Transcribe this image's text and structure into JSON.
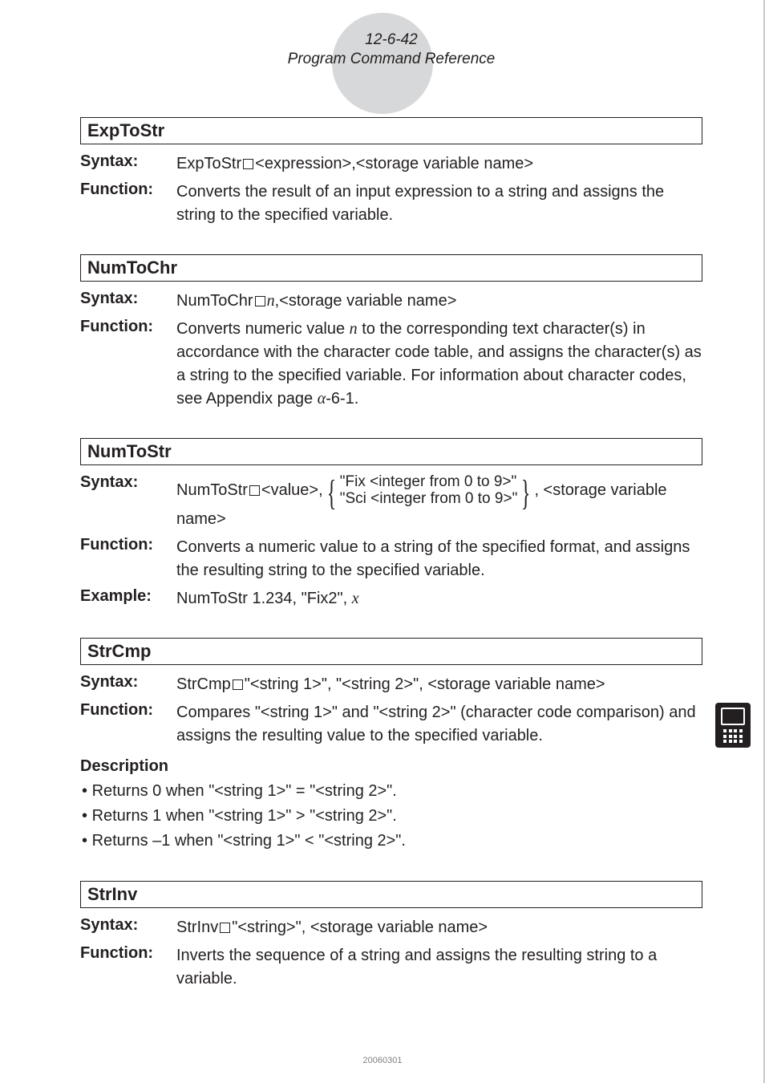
{
  "header": {
    "line1": "12-6-42",
    "line2": "Program Command Reference"
  },
  "cmds": [
    {
      "title": "ExpToStr",
      "syntax_html": "ExpToStr<span class=\"sq\"></span>&lt;expression&gt;,&lt;storage variable name&gt;",
      "function": "Converts the result of an input expression to a string and assigns the string to the specified variable."
    },
    {
      "title": "NumToChr",
      "syntax_html": "NumToChr<span class=\"sq\"></span><span class=\"ital\">n</span>,&lt;storage variable name&gt;",
      "function_html": "Converts numeric value <span class=\"ital\">n</span> to the corresponding text character(s) in accordance with the character code table, and assigns the character(s) as a string to the specified variable. For information about character codes, see Appendix page <span class=\"alpha\">α</span>-6-1."
    },
    {
      "title": "NumToStr",
      "syntax_html": "NumToStr<span class=\"sq\"></span>&lt;value&gt;,<span class=\"brace\">{</span><span class=\"stack\"><div>\"Fix &lt;integer from 0 to 9&gt;\"</div><div>\"Sci &lt;integer from 0 to 9&gt;\"</div></span><span class=\"brace\">}</span>, &lt;storage variable name&gt;",
      "function": "Converts a numeric value to a string of the specified format, and assigns the resulting string to the specified variable.",
      "example_html": "NumToStr 1.234, \"Fix2\", <span class=\"ital\">x</span>"
    },
    {
      "title": "StrCmp",
      "syntax_html": "StrCmp<span class=\"sq\"></span>\"&lt;string 1&gt;\", \"&lt;string 2&gt;\", &lt;storage variable name&gt;",
      "function": "Compares \"<string 1>\" and \"<string 2>\" (character code comparison) and assigns the resulting value to the specified variable.",
      "desc_heading": "Description",
      "bullets": [
        "Returns 0 when \"<string 1>\" = \"<string 2>\".",
        "Returns 1 when \"<string 1>\" > \"<string 2>\".",
        "Returns –1 when \"<string 1>\" < \"<string 2>\"."
      ]
    },
    {
      "title": "StrInv",
      "syntax_html": "StrInv<span class=\"sq\"></span>\"&lt;string&gt;\", &lt;storage variable name&gt;",
      "function": "Inverts the sequence of a string and assigns the resulting string to a variable."
    }
  ],
  "labels": {
    "syntax": "Syntax:",
    "function": "Function:",
    "example": "Example:"
  },
  "footer": "20060301",
  "colors": {
    "border": "#231f20",
    "circle": "#d7d8d9",
    "rightbar": "#c9cacb",
    "text": "#231f20",
    "footer": "#808080"
  }
}
